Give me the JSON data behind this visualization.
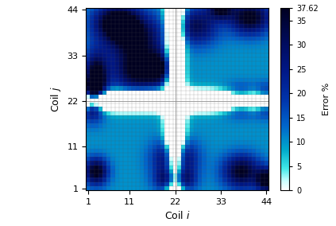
{
  "n_coils": 44,
  "vmin": 0,
  "vmax": 37.62,
  "xlabel": "Coil $i$",
  "ylabel": "Coil $j$",
  "colorbar_label": "Error %",
  "xtick_positions": [
    1,
    11,
    22,
    33,
    44
  ],
  "ytick_positions": [
    1,
    11,
    22,
    33,
    44
  ],
  "xtick_labels": [
    "1",
    "11",
    "22",
    "33",
    "44"
  ],
  "ytick_labels": [
    "1",
    "11",
    "22",
    "33",
    "44"
  ],
  "colorbar_ticks": [
    0,
    5,
    10,
    15,
    20,
    25,
    30,
    35,
    37.62
  ],
  "colorbar_tick_labels": [
    "0",
    "5",
    "10",
    "15",
    "20",
    "25",
    "30",
    "35",
    "37.62"
  ],
  "figsize": [
    4.23,
    2.84
  ],
  "dpi": 100
}
